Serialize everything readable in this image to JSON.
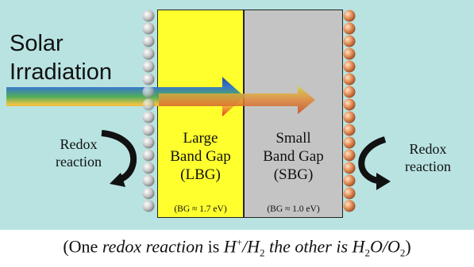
{
  "solar": {
    "line1": "Solar",
    "line2": "Irradiation"
  },
  "lbg": {
    "line1": "Large",
    "line2": "Band Gap",
    "line3": "(LBG)",
    "bg_value": "(BG ≈ 1.7 eV)"
  },
  "sbg": {
    "line1": "Small",
    "line2": "Band Gap",
    "line3": "(SBG)",
    "bg_value": "(BG ≈ 1.0 eV)"
  },
  "redox_left": {
    "line1": "Redox",
    "line2": "reaction"
  },
  "redox_right": {
    "line1": "Redox",
    "line2": "reaction"
  },
  "caption": {
    "open": "(One ",
    "italic1": "redox reaction",
    "mid": " is ",
    "h": "H",
    "plus": "+",
    "slash1": "/",
    "h2": "H",
    "sub2": "2",
    "italic2": " the other is ",
    "h2o_h": "H",
    "h2o_sub": "2",
    "h2o_o": "O/O",
    "o2_sub": "2",
    "close": ")"
  },
  "colors": {
    "background": "#b8e3e1",
    "lbg_fill": "#ffff2e",
    "sbg_fill": "#c4c4c4",
    "left_catalyst": "#c8c8c8",
    "right_catalyst": "#e08a52"
  }
}
